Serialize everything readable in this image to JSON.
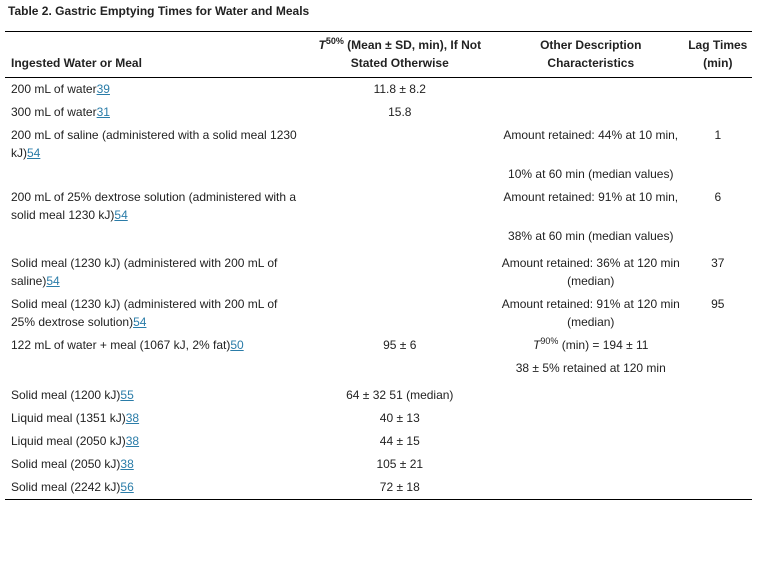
{
  "caption": "Table 2.  Gastric Emptying Times for Water and Meals",
  "headers": {
    "col1": "Ingested Water or Meal",
    "col2_sym": "T",
    "col2_sup": "50%",
    "col2_text": " (Mean ± SD, min), If Not Stated Otherwise",
    "col3": "Other Description Characteristics",
    "col4": "Lag Times (min)"
  },
  "rows": [
    {
      "meal": "200 mL of water",
      "ref": "39",
      "t50": "11.8 ± 8.2",
      "desc": "",
      "lag": ""
    },
    {
      "meal": "300 mL of water",
      "ref": "31",
      "t50": "15.8",
      "desc": "",
      "lag": ""
    },
    {
      "meal": "200 mL of saline (administered with a solid meal 1230 kJ)",
      "ref": "54",
      "t50": "",
      "desc": "Amount retained: 44% at 10 min,",
      "lag": "1"
    },
    {
      "meal": "",
      "ref": "",
      "t50": "",
      "desc": "10% at 60 min (median values)",
      "lag": ""
    },
    {
      "meal": "200 mL of 25% dextrose solution (administered with a solid meal 1230 kJ)",
      "ref": "54",
      "t50": "",
      "desc": "Amount retained: 91% at 10 min,",
      "lag": "6"
    },
    {
      "meal": "",
      "ref": "",
      "t50": "",
      "desc": "38% at 60 min (median values)",
      "lag": ""
    },
    {
      "meal": "Solid meal (1230 kJ) (administered with 200 mL of saline)",
      "ref": "54",
      "t50": "",
      "desc": "Amount retained: 36% at 120 min (median)",
      "lag": "37"
    },
    {
      "meal": "Solid meal (1230 kJ) (administered with 200 mL of 25% dextrose solution)",
      "ref": "54",
      "t50": "",
      "desc": "Amount retained: 91% at 120 min (median)",
      "lag": "95"
    },
    {
      "meal": "122 mL of water + meal (1067 kJ, 2% fat)",
      "ref": "50",
      "t50": "95 ± 6",
      "desc_sym": "T",
      "desc_sup": "90%",
      "desc": " (min) = 194 ± 11",
      "lag": ""
    },
    {
      "meal": "",
      "ref": "",
      "t50": "",
      "desc": "38 ± 5% retained at 120 min",
      "lag": ""
    },
    {
      "meal": "Solid meal (1200 kJ)",
      "ref": "55",
      "t50": "64 ± 32 51 (median)",
      "desc": "",
      "lag": ""
    },
    {
      "meal": "Liquid meal (1351 kJ)",
      "ref": "38",
      "t50": "40 ± 13",
      "desc": "",
      "lag": ""
    },
    {
      "meal": "Liquid meal (2050 kJ)",
      "ref": "38",
      "t50": "44 ± 15",
      "desc": "",
      "lag": ""
    },
    {
      "meal": "Solid meal (2050 kJ)",
      "ref": "38",
      "t50": "105 ± 21",
      "desc": "",
      "lag": ""
    },
    {
      "meal": "Solid meal (2242 kJ)",
      "ref": "56",
      "t50": "72 ± 18",
      "desc": "",
      "lag": ""
    }
  ]
}
